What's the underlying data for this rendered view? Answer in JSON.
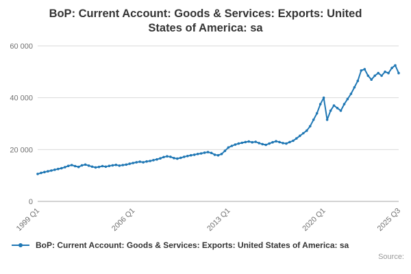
{
  "header": {
    "title": "BoP: Current Account: Goods & Services: Exports: United States of America: sa"
  },
  "legend": {
    "label": "BoP: Current Account: Goods & Services: Exports: United States of America: sa"
  },
  "footer": {
    "source_label": "Source:"
  },
  "chart_data": {
    "type": "line",
    "title": "BoP: Current Account: Goods & Services: Exports: United States of America: sa",
    "series_name": "BoP: Current Account: Goods & Services: Exports: United States of America: sa",
    "frequency": "quarterly",
    "x_start": "1999 Q1",
    "x_end": "2025 Q3",
    "xlabel": "",
    "ylabel": "",
    "ylim": [
      0,
      60000
    ],
    "grid": "horizontal",
    "legend_position": "bottom-left",
    "yticks": [
      {
        "value": 0,
        "label": "0"
      },
      {
        "value": 20000,
        "label": "20 000"
      },
      {
        "value": 40000,
        "label": "40 000"
      },
      {
        "value": 60000,
        "label": "60 000"
      }
    ],
    "xticks": [
      {
        "index": 0,
        "label": "1999 Q1"
      },
      {
        "index": 28,
        "label": "2006 Q1"
      },
      {
        "index": 56,
        "label": "2013 Q1"
      },
      {
        "index": 84,
        "label": "2020 Q1"
      },
      {
        "index": 106,
        "label": "2025 Q3"
      }
    ],
    "values": [
      10600,
      11000,
      11300,
      11600,
      11900,
      12200,
      12500,
      12800,
      13200,
      13700,
      14000,
      13600,
      13300,
      13900,
      14200,
      13800,
      13400,
      13100,
      13300,
      13600,
      13400,
      13700,
      13900,
      14100,
      13800,
      14000,
      14200,
      14500,
      14800,
      15100,
      15300,
      15100,
      15400,
      15600,
      15900,
      16200,
      16600,
      17100,
      17400,
      17200,
      16700,
      16500,
      16800,
      17200,
      17500,
      17800,
      18000,
      18300,
      18500,
      18800,
      19000,
      18700,
      18000,
      17800,
      18300,
      19500,
      20800,
      21400,
      21900,
      22300,
      22600,
      22900,
      23100,
      22800,
      23000,
      22500,
      22100,
      21800,
      22300,
      22800,
      23200,
      22900,
      22500,
      22300,
      22900,
      23400,
      24300,
      25300,
      26300,
      27300,
      29000,
      31500,
      34000,
      37500,
      40000,
      31500,
      35000,
      37000,
      36000,
      35000,
      37500,
      39500,
      41500,
      44000,
      46500,
      50500,
      51000,
      48500,
      47000,
      48500,
      49500,
      48500,
      50000,
      49500,
      51500,
      52500,
      49500
    ],
    "colors": {
      "line": "#1f77b4",
      "grid": "#d9d9d9",
      "axis": "#a6a6a6",
      "tick_text": "#707070"
    }
  }
}
